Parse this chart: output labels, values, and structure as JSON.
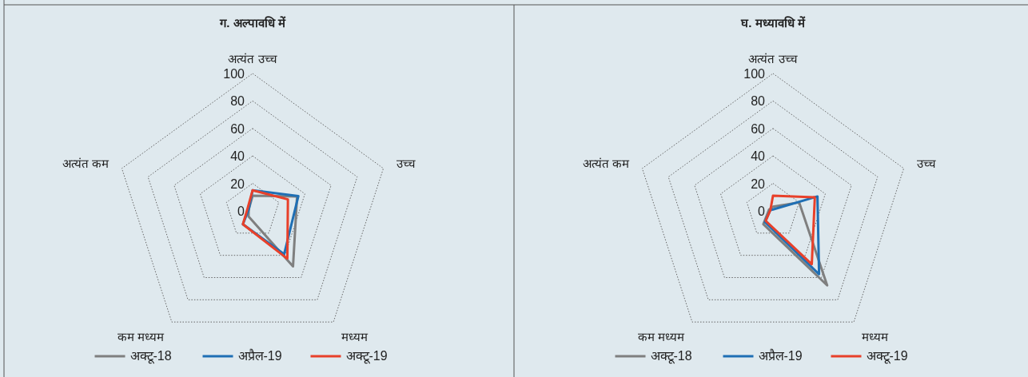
{
  "chart_data": [
    {
      "type": "radar",
      "title": "ग. अल्पावधि में",
      "categories": [
        "अत्यंत उच्च",
        "उच्च",
        "मध्यम",
        "कम मध्यम",
        "अत्यंत कम"
      ],
      "ylim": [
        0,
        100
      ],
      "yticks": [
        0,
        20,
        40,
        60,
        80,
        100
      ],
      "grid": true,
      "legend": "bottom",
      "marker": "none",
      "line_style": "solid",
      "series": [
        {
          "name": "अक्टू-18",
          "color": "#7f7f7f",
          "values": [
            11,
            34,
            50,
            5,
            3
          ]
        },
        {
          "name": "अप्रैल-19",
          "color": "#1f6fb4",
          "values": [
            15,
            35,
            39,
            12,
            3
          ]
        },
        {
          "name": "अक्टू-19",
          "color": "#e8402a",
          "values": [
            15,
            27,
            43,
            12,
            4
          ]
        }
      ]
    },
    {
      "type": "radar",
      "title": "घ. मध्यावधि में",
      "categories": [
        "अत्यंत उच्च",
        "उच्च",
        "मध्यम",
        "कम मध्यम",
        "अत्यंत कम"
      ],
      "ylim": [
        0,
        100
      ],
      "yticks": [
        0,
        20,
        40,
        60,
        80,
        100
      ],
      "grid": true,
      "legend": "bottom",
      "marker": "none",
      "line_style": "solid",
      "series": [
        {
          "name": "अक्टू-18",
          "color": "#7f7f7f",
          "values": [
            3,
            20,
            67,
            12,
            3
          ]
        },
        {
          "name": "अप्रैल-19",
          "color": "#1f6fb4",
          "values": [
            1,
            34,
            57,
            10,
            2
          ]
        },
        {
          "name": "अक्टू-19",
          "color": "#e8402a",
          "values": [
            11,
            32,
            48,
            9,
            2
          ]
        }
      ]
    }
  ]
}
